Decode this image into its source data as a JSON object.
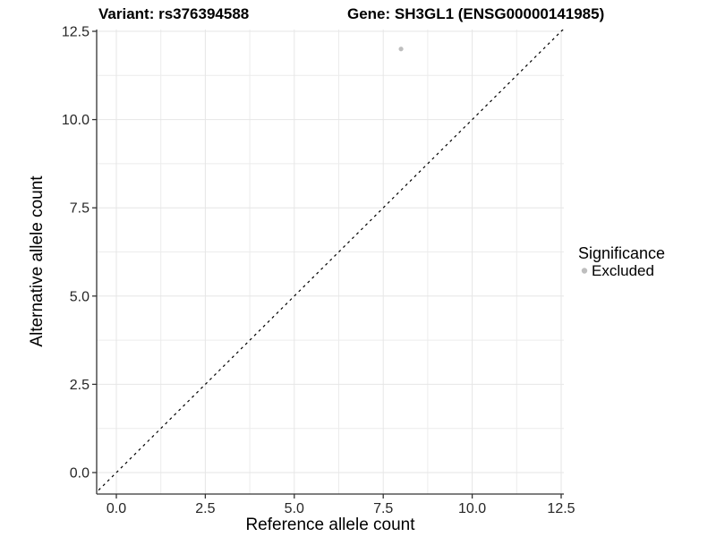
{
  "chart_data": {
    "type": "scatter",
    "title_left": "Variant: rs376394588",
    "title_right": "Gene: SH3GL1 (ENSG00000141985)",
    "xlabel": "Reference allele count",
    "ylabel": "Alternative allele count",
    "x_tick_values": [
      0,
      2.5,
      5,
      7.5,
      10,
      12.5
    ],
    "x_tick_labels": [
      "0.0",
      "2.5",
      "5.0",
      "7.5",
      "10.0",
      "12.5"
    ],
    "y_tick_values": [
      0,
      2.5,
      5,
      7.5,
      10,
      12.5
    ],
    "y_tick_labels": [
      "0.0",
      "2.5",
      "5.0",
      "7.5",
      "10.0",
      "12.5"
    ],
    "minor_tick_values": [
      1.25,
      3.75,
      6.25,
      8.75,
      11.25
    ],
    "xlim": [
      -0.57,
      12.57
    ],
    "ylim": [
      -0.61,
      12.55
    ],
    "grid": "major+minor",
    "gridlines_on": true,
    "reference_line": {
      "kind": "identity",
      "slope": 1,
      "intercept": 0,
      "style": "dashed",
      "color": "#000000"
    },
    "series": [
      {
        "name": "Excluded",
        "color": "#bebebe",
        "points": [
          {
            "x": 8,
            "y": 12
          }
        ]
      }
    ],
    "legend": {
      "title": "Significance",
      "position": "right",
      "items": [
        {
          "label": "Excluded",
          "color": "#bebebe",
          "marker": "circle"
        }
      ]
    }
  },
  "colors": {
    "background": "#ffffff",
    "panel_background": "#ffffff",
    "grid_major": "#e6e6e6",
    "grid_minor": "#ececec",
    "axis_line": "#333333",
    "tick_mark": "#333333",
    "tick_text": "#262626",
    "title_text": "#000000",
    "point": "#bebebe",
    "reference_line": "#000000"
  }
}
